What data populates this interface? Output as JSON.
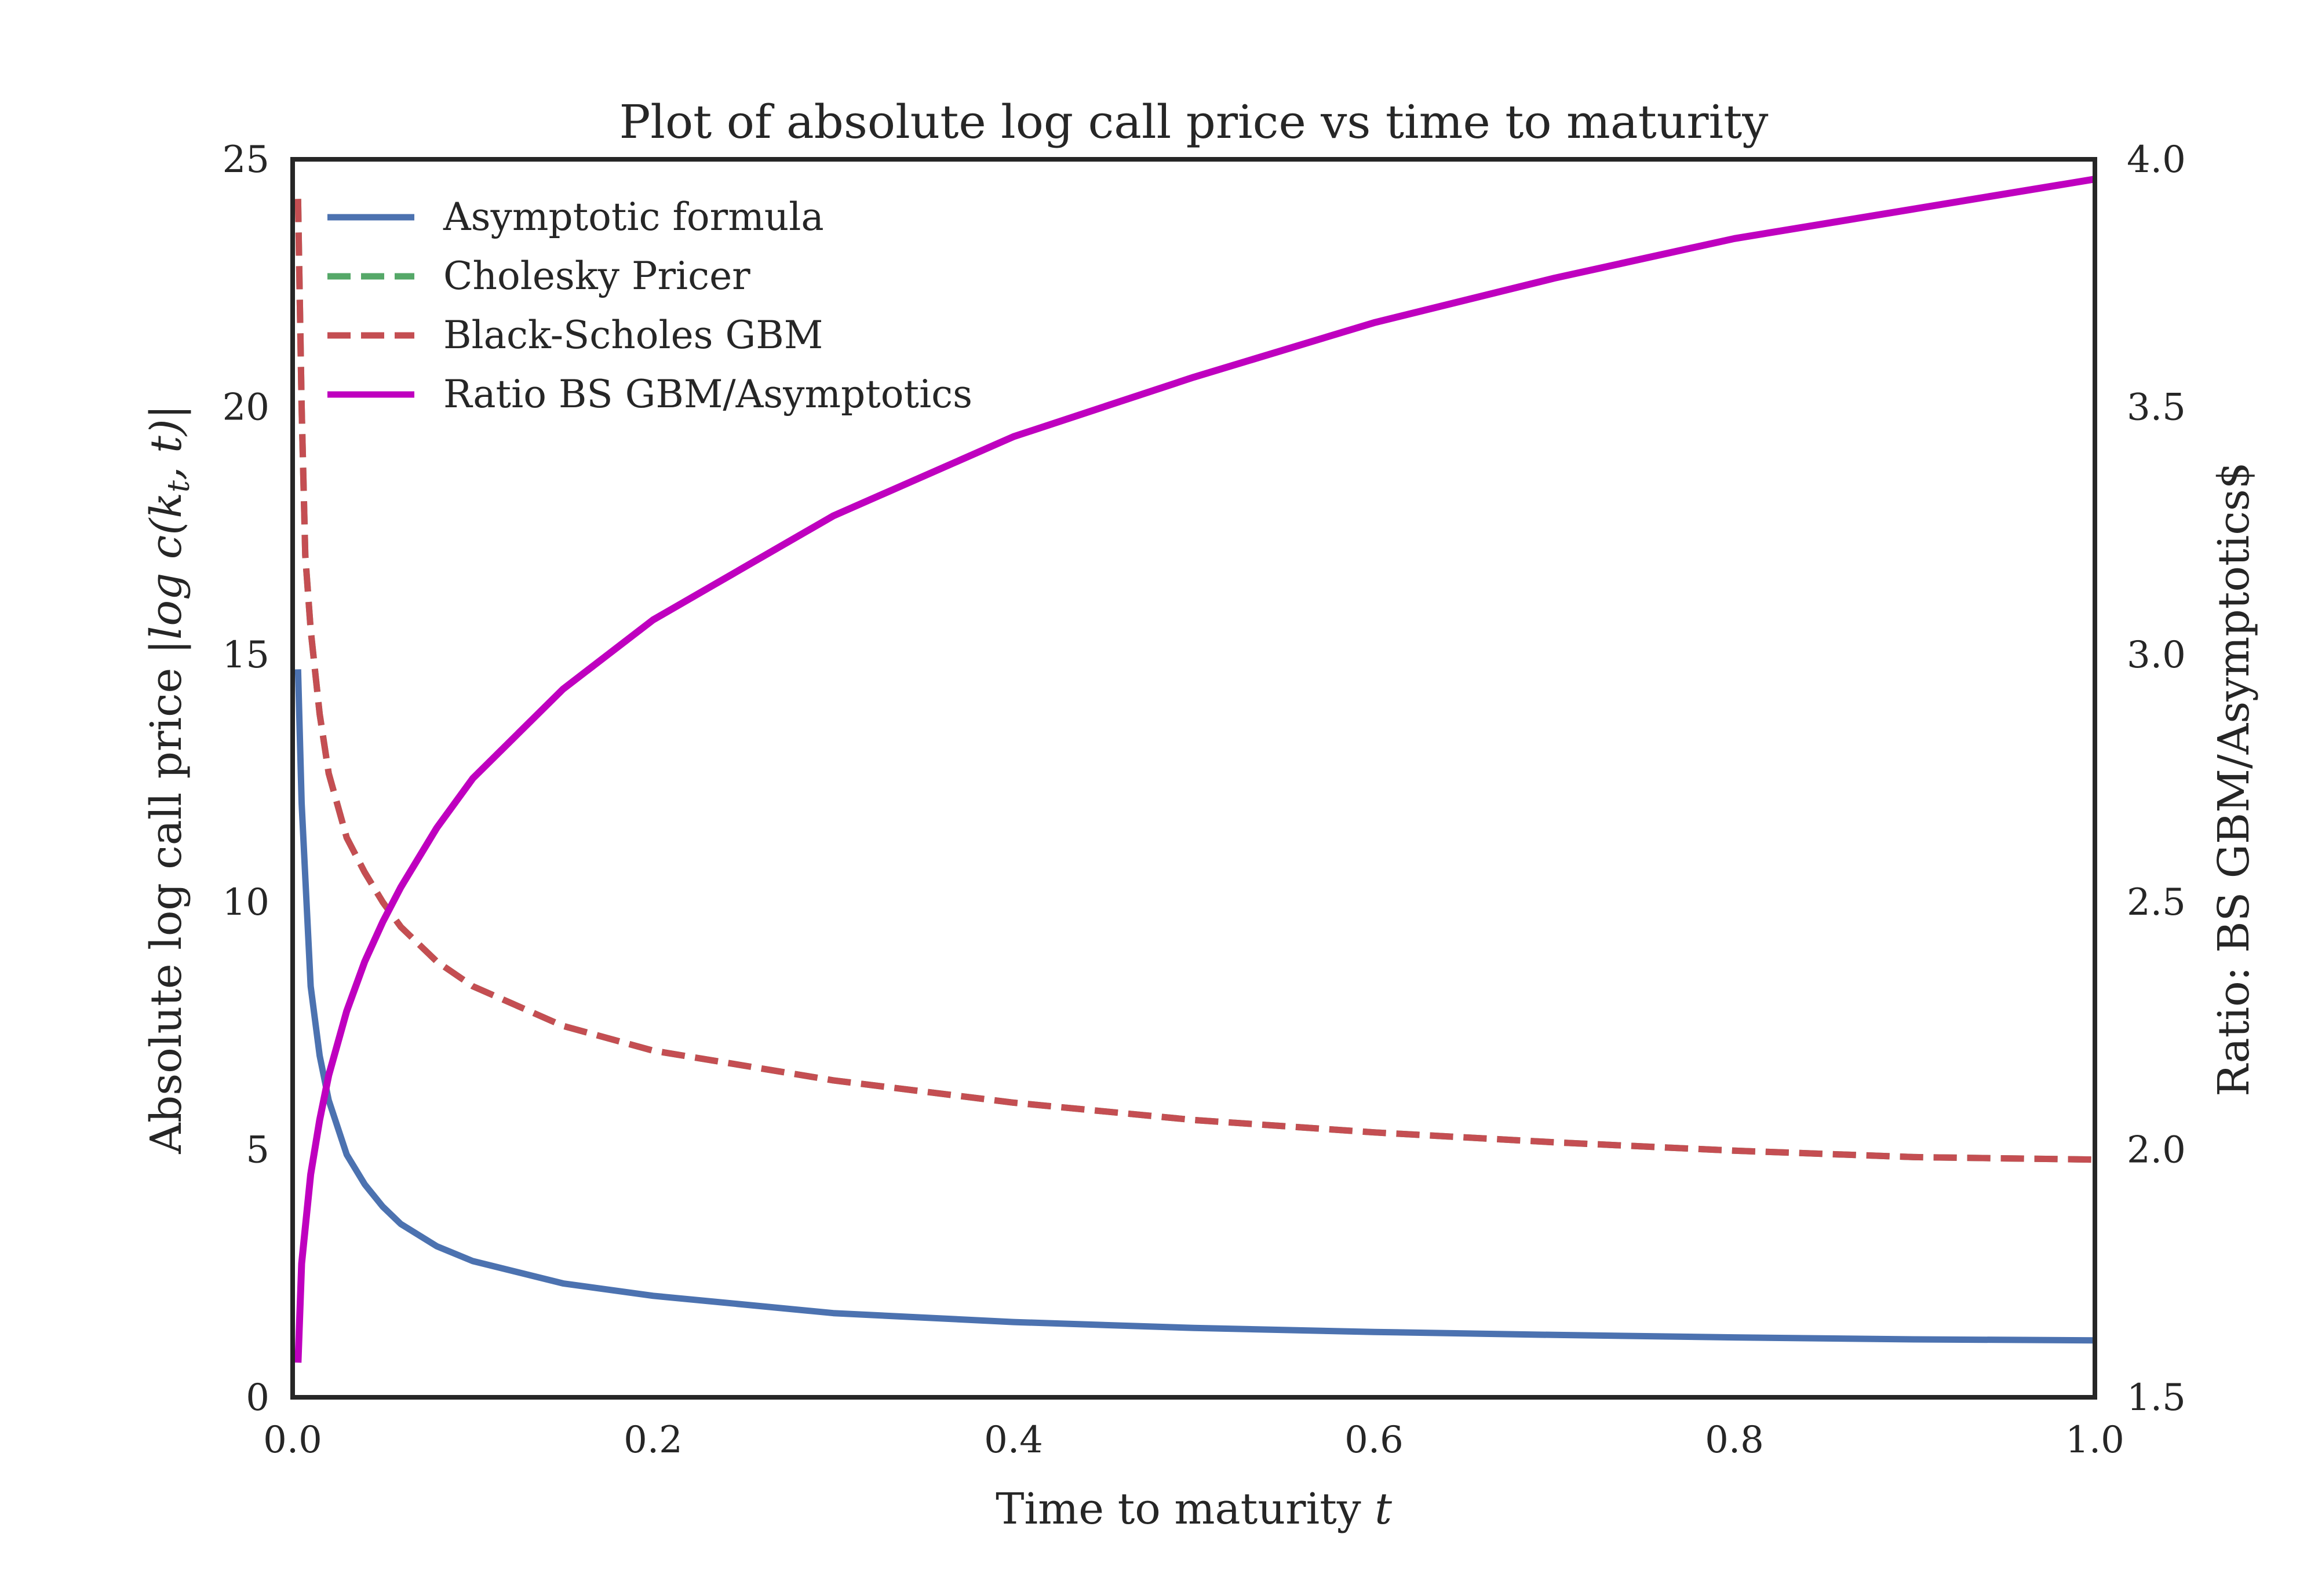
{
  "chart_data": {
    "type": "line",
    "title": "Plot of absolute log call price vs time to maturity",
    "xlabel": "Time to maturity",
    "xlabel_math": "t",
    "ylabel": "Absolute log call price",
    "ylabel_math": "|log c(k",
    "ylabel_math_sub": "t",
    "ylabel_math_end": ", t)|",
    "y2label": "Ratio: BS GBM/Asymptotics$",
    "xlim": [
      0.0,
      1.0
    ],
    "ylim": [
      0,
      25
    ],
    "y2lim": [
      1.5,
      4.0
    ],
    "xticks": [
      "0.0",
      "0.2",
      "0.4",
      "0.6",
      "0.8",
      "1.0"
    ],
    "yticks": [
      "0",
      "5",
      "10",
      "15",
      "20",
      "25"
    ],
    "y2ticks": [
      "1.5",
      "2.0",
      "2.5",
      "3.0",
      "3.5",
      "4.0"
    ],
    "grid": false,
    "legend_position": "top-left",
    "series": [
      {
        "name": "Asymptotic formula",
        "axis": "left",
        "color": "#4c72b0",
        "style": "solid",
        "x": [
          0.003,
          0.005,
          0.01,
          0.015,
          0.02,
          0.03,
          0.04,
          0.05,
          0.06,
          0.08,
          0.1,
          0.15,
          0.2,
          0.3,
          0.4,
          0.5,
          0.6,
          0.7,
          0.8,
          0.9,
          1.0
        ],
        "y": [
          14.7,
          12.0,
          8.3,
          6.9,
          6.0,
          4.9,
          4.3,
          3.85,
          3.5,
          3.05,
          2.75,
          2.3,
          2.05,
          1.7,
          1.52,
          1.4,
          1.32,
          1.26,
          1.21,
          1.17,
          1.15
        ]
      },
      {
        "name": "Cholesky Pricer",
        "axis": "left",
        "color": "#55a868",
        "style": "dashed",
        "x": [
          0.003,
          0.005,
          0.007,
          0.01,
          0.015,
          0.02,
          0.03,
          0.04,
          0.05,
          0.06,
          0.08,
          0.1,
          0.15,
          0.2,
          0.3,
          0.4,
          0.5,
          0.6,
          0.7,
          0.8,
          0.9,
          1.0
        ],
        "y": [
          24.2,
          20.0,
          17.0,
          15.5,
          13.8,
          12.6,
          11.3,
          10.6,
          10.0,
          9.5,
          8.8,
          8.3,
          7.5,
          7.0,
          6.4,
          5.95,
          5.6,
          5.35,
          5.15,
          4.98,
          4.85,
          4.8
        ]
      },
      {
        "name": "Black-Scholes GBM",
        "axis": "left",
        "color": "#c44e52",
        "style": "dashed",
        "x": [
          0.003,
          0.005,
          0.007,
          0.01,
          0.015,
          0.02,
          0.03,
          0.04,
          0.05,
          0.06,
          0.08,
          0.1,
          0.15,
          0.2,
          0.3,
          0.4,
          0.5,
          0.6,
          0.7,
          0.8,
          0.9,
          1.0
        ],
        "y": [
          24.2,
          20.0,
          17.0,
          15.5,
          13.8,
          12.6,
          11.3,
          10.6,
          10.0,
          9.5,
          8.8,
          8.3,
          7.5,
          7.0,
          6.4,
          5.95,
          5.6,
          5.35,
          5.15,
          4.98,
          4.85,
          4.8
        ]
      },
      {
        "name": "Ratio BS GBM/Asymptotics",
        "axis": "right",
        "color": "#bf00bf",
        "style": "solid",
        "x": [
          0.003,
          0.005,
          0.01,
          0.015,
          0.02,
          0.03,
          0.04,
          0.05,
          0.06,
          0.08,
          0.1,
          0.15,
          0.2,
          0.3,
          0.4,
          0.5,
          0.6,
          0.7,
          0.8,
          0.9,
          1.0
        ],
        "y": [
          1.57,
          1.77,
          1.95,
          2.06,
          2.15,
          2.28,
          2.38,
          2.46,
          2.53,
          2.65,
          2.75,
          2.93,
          3.07,
          3.28,
          3.44,
          3.56,
          3.67,
          3.76,
          3.84,
          3.9,
          3.96
        ]
      }
    ]
  }
}
